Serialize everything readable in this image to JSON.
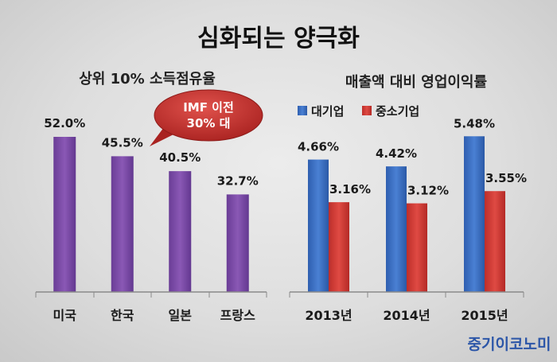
{
  "title": "심화되는 양극화",
  "brand": "중기이코노미",
  "colors": {
    "purple": "#7a4ba3",
    "blue": "#3a6fc4",
    "red": "#d03a36",
    "callout": "#c9302c",
    "brand": "#2c56a8"
  },
  "chart_data": [
    {
      "type": "bar",
      "title": "상위 10% 소득점유율",
      "categories": [
        "미국",
        "한국",
        "일본",
        "프랑스"
      ],
      "values": [
        52.0,
        45.5,
        40.5,
        32.7
      ],
      "value_labels": [
        "52.0%",
        "45.5%",
        "40.5%",
        "32.7%"
      ],
      "unit": "%",
      "ylim": [
        0,
        60
      ],
      "grid": false,
      "annotation": {
        "line1": "IMF 이전",
        "line2": "30% 대",
        "target": "한국"
      }
    },
    {
      "type": "bar",
      "title": "매출액 대비 영업이익률",
      "categories": [
        "2013년",
        "2014년",
        "2015년"
      ],
      "series": [
        {
          "name": "대기업",
          "values": [
            4.66,
            4.42,
            5.48
          ],
          "labels": [
            "4.66%",
            "4.42%",
            "5.48%"
          ]
        },
        {
          "name": "중소기업",
          "values": [
            3.16,
            3.12,
            3.55
          ],
          "labels": [
            "3.16%",
            "3.12%",
            "3.55%"
          ]
        }
      ],
      "unit": "%",
      "ylim": [
        0,
        6.3
      ],
      "legend": "top-left",
      "grid": false
    }
  ]
}
